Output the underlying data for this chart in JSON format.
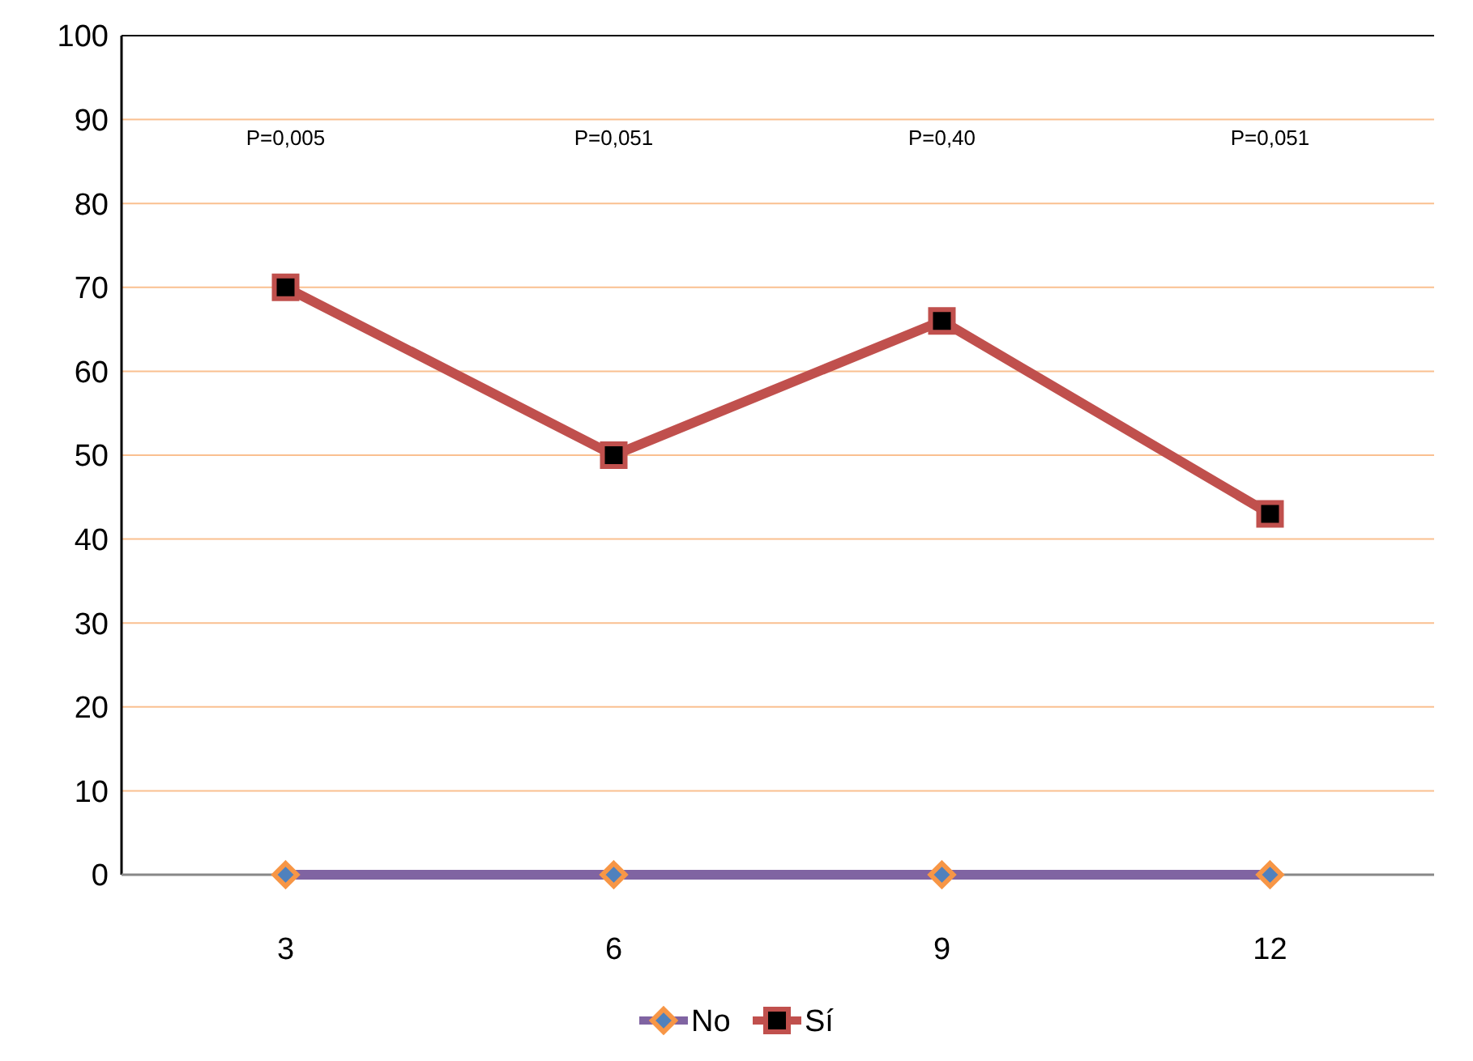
{
  "chart_data": {
    "type": "line",
    "categories": [
      "3",
      "6",
      "9",
      "12"
    ],
    "series": [
      {
        "name": "No",
        "color": "#8064a2",
        "values": [
          0,
          0,
          0,
          0
        ],
        "marker": "diamond"
      },
      {
        "name": "Sí",
        "color": "#c0504d",
        "values": [
          70,
          50,
          66,
          43
        ],
        "marker": "square"
      }
    ],
    "ylim": [
      0,
      100
    ],
    "yticks": [
      0,
      10,
      20,
      30,
      40,
      50,
      60,
      70,
      80,
      90,
      100
    ],
    "grid": "y",
    "legend": "bottom",
    "annotations": [
      "P=0,005",
      "P=0,051",
      "P=0,40",
      "P=0,051"
    ]
  }
}
